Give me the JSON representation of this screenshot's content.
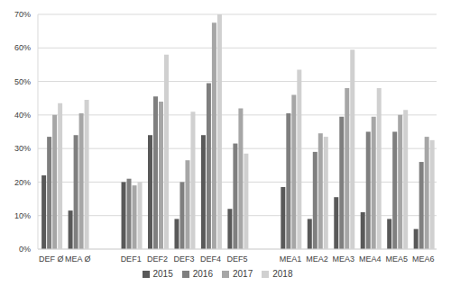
{
  "chart_data": {
    "type": "bar",
    "categories": [
      "DEF Ø",
      "MEA Ø",
      null,
      "DEF1",
      "DEF2",
      "DEF3",
      "DEF4",
      "DEF5",
      null,
      "MEA1",
      "MEA2",
      "MEA3",
      "MEA4",
      "MEA5",
      "MEA6"
    ],
    "series": [
      {
        "name": "2015",
        "color": "#595959",
        "values": [
          22,
          11.5,
          null,
          20,
          34,
          9,
          34,
          12,
          null,
          18.5,
          9,
          15.5,
          11,
          9,
          6
        ]
      },
      {
        "name": "2016",
        "color": "#7f7f7f",
        "values": [
          33.5,
          34,
          null,
          21,
          45.5,
          20,
          49.5,
          31.5,
          null,
          40.5,
          29,
          39.5,
          35,
          35,
          26
        ]
      },
      {
        "name": "2017",
        "color": "#a6a6a6",
        "values": [
          40,
          40.5,
          null,
          19,
          44,
          26.5,
          67.5,
          42,
          null,
          46,
          34.5,
          48,
          39.5,
          40,
          33.5
        ]
      },
      {
        "name": "2018",
        "color": "#d0d0d0",
        "values": [
          43.5,
          44.5,
          null,
          20,
          58,
          41,
          70,
          28.5,
          null,
          53.5,
          33.5,
          59.5,
          48,
          41.5,
          32.5
        ]
      }
    ],
    "ylim": [
      0,
      70
    ],
    "yticks": [
      {
        "value": 0,
        "label": "0%"
      },
      {
        "value": 10,
        "label": "10%"
      },
      {
        "value": 20,
        "label": "20%"
      },
      {
        "value": 30,
        "label": "30%"
      },
      {
        "value": 40,
        "label": "40%"
      },
      {
        "value": 50,
        "label": "50%"
      },
      {
        "value": 60,
        "label": "60%"
      },
      {
        "value": 70,
        "label": "70%"
      }
    ],
    "grid": true,
    "legend": "bottom"
  }
}
